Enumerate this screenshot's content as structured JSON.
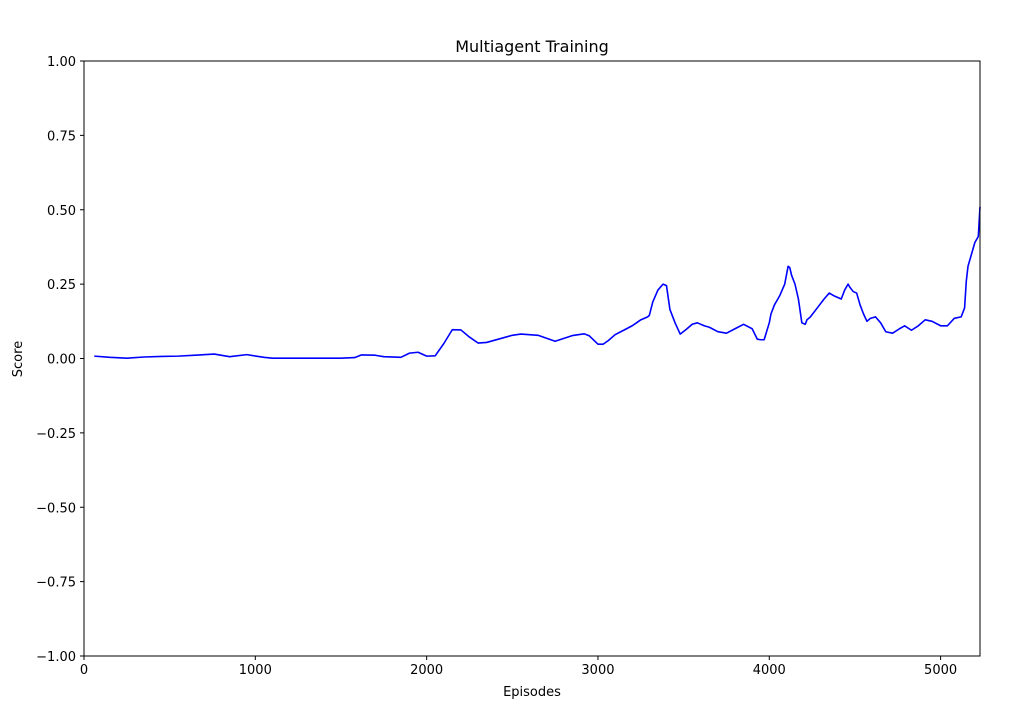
{
  "chart_data": {
    "type": "line",
    "title": "Multiagent Training",
    "xlabel": "Episodes",
    "ylabel": "Score",
    "xlim": [
      0,
      5230
    ],
    "ylim": [
      -1.0,
      1.0
    ],
    "grid": false,
    "x_ticks": [
      0,
      1000,
      2000,
      3000,
      4000,
      5000
    ],
    "x_tick_labels": [
      "0",
      "1000",
      "2000",
      "3000",
      "4000",
      "5000"
    ],
    "y_ticks": [
      -1.0,
      -0.75,
      -0.5,
      -0.25,
      0.0,
      0.25,
      0.5,
      0.75,
      1.0
    ],
    "y_tick_labels": [
      "−1.00",
      "−0.75",
      "−0.50",
      "−0.25",
      "0.00",
      "0.25",
      "0.50",
      "0.75",
      "1.00"
    ],
    "series": [
      {
        "color": "#0000ff",
        "x": [
          60,
          150,
          250,
          350,
          450,
          550,
          650,
          760,
          850,
          950,
          1050,
          1100,
          1200,
          1300,
          1400,
          1500,
          1580,
          1620,
          1700,
          1750,
          1850,
          1900,
          1950,
          2000,
          2050,
          2100,
          2150,
          2200,
          2250,
          2300,
          2350,
          2400,
          2450,
          2500,
          2550,
          2650,
          2750,
          2850,
          2920,
          2950,
          3000,
          3030,
          3060,
          3100,
          3150,
          3200,
          3250,
          3290,
          3300,
          3320,
          3350,
          3380,
          3400,
          3420,
          3450,
          3480,
          3520,
          3550,
          3580,
          3620,
          3650,
          3700,
          3750,
          3800,
          3850,
          3900,
          3930,
          3950,
          3970,
          4000,
          4010,
          4030,
          4060,
          4090,
          4110,
          4120,
          4130,
          4150,
          4170,
          4190,
          4210,
          4220,
          4240,
          4280,
          4320,
          4350,
          4380,
          4420,
          4440,
          4460,
          4470,
          4490,
          4510,
          4530,
          4550,
          4570,
          4590,
          4620,
          4650,
          4680,
          4720,
          4760,
          4790,
          4830,
          4870,
          4910,
          4950,
          5000,
          5040,
          5080,
          5120,
          5140,
          5150,
          5160,
          5180,
          5200,
          5220,
          5230
        ],
        "y": [
          0.008,
          0.004,
          0.001,
          0.005,
          0.007,
          0.008,
          0.011,
          0.015,
          0.006,
          0.013,
          0.004,
          0.001,
          0.001,
          0.001,
          0.001,
          0.001,
          0.003,
          0.012,
          0.011,
          0.006,
          0.004,
          0.018,
          0.021,
          0.008,
          0.009,
          0.05,
          0.097,
          0.096,
          0.072,
          0.052,
          0.054,
          0.062,
          0.07,
          0.078,
          0.082,
          0.078,
          0.058,
          0.077,
          0.083,
          0.076,
          0.048,
          0.048,
          0.06,
          0.08,
          0.095,
          0.11,
          0.13,
          0.14,
          0.145,
          0.19,
          0.23,
          0.25,
          0.245,
          0.165,
          0.12,
          0.082,
          0.1,
          0.115,
          0.12,
          0.11,
          0.105,
          0.09,
          0.085,
          0.1,
          0.115,
          0.1,
          0.065,
          0.063,
          0.063,
          0.12,
          0.15,
          0.18,
          0.21,
          0.25,
          0.31,
          0.305,
          0.28,
          0.25,
          0.2,
          0.12,
          0.115,
          0.13,
          0.14,
          0.17,
          0.2,
          0.22,
          0.21,
          0.2,
          0.23,
          0.25,
          0.24,
          0.225,
          0.22,
          0.18,
          0.15,
          0.125,
          0.135,
          0.14,
          0.12,
          0.09,
          0.085,
          0.1,
          0.11,
          0.095,
          0.11,
          0.13,
          0.125,
          0.11,
          0.11,
          0.135,
          0.14,
          0.17,
          0.26,
          0.31,
          0.35,
          0.39,
          0.41,
          0.51
        ]
      }
    ]
  }
}
